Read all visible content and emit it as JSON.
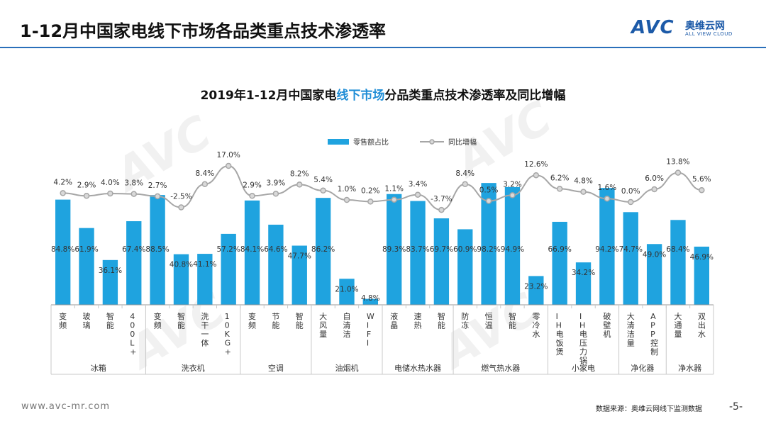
{
  "page_title": "1-12月中国家电线下市场各品类重点技术渗透率",
  "logo": {
    "mark": "AVC",
    "name_cn": "奥维云网",
    "name_en": "ALL VIEW CLOUD"
  },
  "watermark": "AVC",
  "footer": {
    "site": "www.avc-mr.com",
    "source": "数据来源：奥维云网线下监测数据",
    "page": "-5-"
  },
  "chart_data": {
    "type": "bar",
    "title_prefix": "2019年1-12月中国家电",
    "title_highlight": "线下市场",
    "title_suffix": "分品类重点技术渗透率及同比增幅",
    "legend": {
      "bar": "零售额占比",
      "line": "同比增幅",
      "position": "top"
    },
    "colors": {
      "bar": "#1fa3df",
      "line": "#a6a6a6",
      "marker_fill": "#d9d9d9",
      "title_highlight": "#1f8dd6"
    },
    "categories": [
      "变频",
      "玻璃",
      "智能",
      "400L+",
      "变频",
      "智能",
      "洗干一体",
      "10KG+",
      "变频",
      "节能",
      "智能",
      "大风量",
      "自清洁",
      "WIFI",
      "液晶",
      "速热",
      "智能",
      "防冻",
      "恒温",
      "智能",
      "零冷水",
      "IH电饭煲",
      "IH电压力锅",
      "破壁机",
      "大清洁量",
      "APP控制",
      "大通量",
      "双出水"
    ],
    "groups": [
      {
        "name": "冰箱",
        "count": 4
      },
      {
        "name": "洗衣机",
        "count": 4
      },
      {
        "name": "空调",
        "count": 3
      },
      {
        "name": "油烟机",
        "count": 3
      },
      {
        "name": "电储水热水器",
        "count": 3
      },
      {
        "name": "燃气热水器",
        "count": 4
      },
      {
        "name": "小家电",
        "count": 3
      },
      {
        "name": "净化器",
        "count": 2
      },
      {
        "name": "净水器",
        "count": 2
      }
    ],
    "series": [
      {
        "name": "零售额占比",
        "type": "bar",
        "values": [
          84.8,
          61.9,
          36.1,
          67.4,
          88.5,
          40.8,
          41.1,
          57.2,
          84.1,
          64.6,
          47.7,
          86.2,
          21.0,
          4.8,
          89.3,
          83.7,
          69.7,
          60.9,
          98.2,
          94.9,
          23.2,
          66.9,
          34.2,
          94.2,
          74.7,
          49.0,
          68.4,
          46.9
        ],
        "labels": [
          "84.8%",
          "61.9%",
          "36.1%",
          "67.4%",
          "88.5%",
          "40.8%",
          "41.1%",
          "57.2%",
          "84.1%",
          "64.6%",
          "47.7%",
          "86.2%",
          "21.0%",
          "4.8%",
          "89.3%",
          "83.7%",
          "69.7%",
          "60.9%",
          "98.2%",
          "94.9%",
          "23.2%",
          "66.9%",
          "34.2%",
          "94.2%",
          "74.7%",
          "49.0%",
          "68.4%",
          "46.9%"
        ]
      },
      {
        "name": "同比增幅",
        "type": "line",
        "values": [
          4.2,
          2.9,
          4.0,
          3.8,
          2.7,
          -2.5,
          8.4,
          17.0,
          2.9,
          3.9,
          8.2,
          5.4,
          1.0,
          0.2,
          1.1,
          3.4,
          -3.7,
          8.4,
          0.5,
          3.2,
          12.6,
          6.2,
          4.8,
          1.6,
          0.0,
          6.0,
          13.8,
          5.6
        ],
        "labels": [
          "4.2%",
          "2.9%",
          "4.0%",
          "3.8%",
          "2.7%",
          "-2.5%",
          "8.4%",
          "17.0%",
          "2.9%",
          "3.9%",
          "8.2%",
          "5.4%",
          "1.0%",
          "0.2%",
          "1.1%",
          "3.4%",
          "-3.7%",
          "8.4%",
          "0.5%",
          "3.2%",
          "12.6%",
          "6.2%",
          "4.8%",
          "1.6%",
          "0.0%",
          "6.0%",
          "13.8%",
          "5.6%"
        ]
      }
    ],
    "bar_ylim": [
      0,
      100
    ],
    "line_ylim": [
      -15,
      20
    ],
    "grid": false
  }
}
